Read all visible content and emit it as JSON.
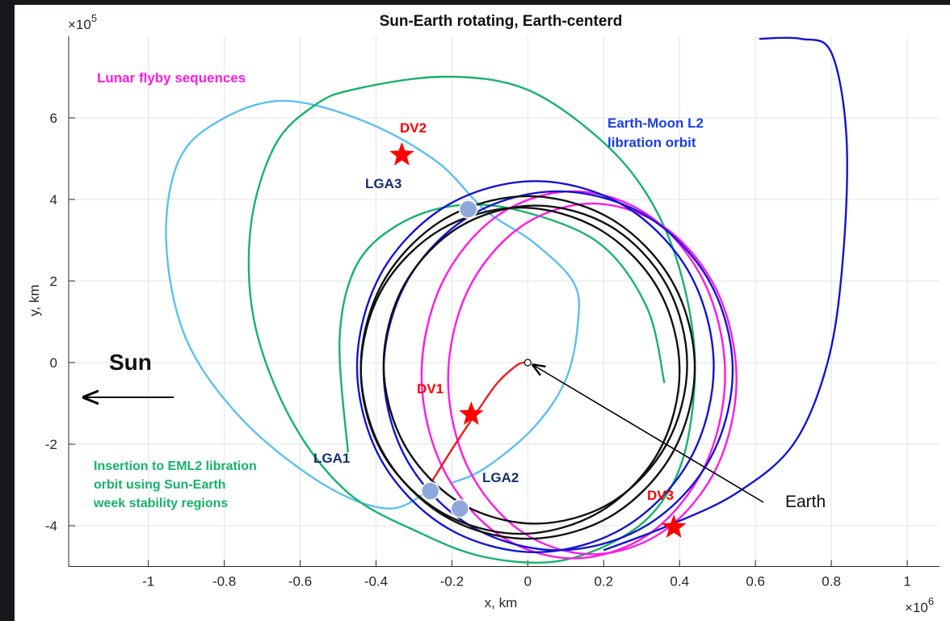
{
  "chart_data": {
    "type": "line",
    "title": "Sun-Earth rotating, Earth-centerd",
    "xlabel": "x, km",
    "ylabel": "y, km",
    "x_multiplier": {
      "base": "×10",
      "power": "6"
    },
    "y_multiplier": {
      "base": "×10",
      "power": "5"
    },
    "xlim": [
      -1.21,
      1.085
    ],
    "ylim": [
      -5,
      8
    ],
    "xticks": [
      -1,
      -0.8,
      -0.6,
      -0.4,
      -0.2,
      0,
      0.2,
      0.4,
      0.6,
      0.8,
      1
    ],
    "yticks": [
      -4,
      -2,
      0,
      2,
      4,
      6
    ],
    "grid": true,
    "series": [
      {
        "color": "#5bc0f0",
        "closed": false,
        "x": [
          -0.262,
          -0.368,
          -0.538,
          -0.751,
          -0.9,
          -0.953,
          -0.921,
          -0.815,
          -0.645,
          -0.432,
          -0.24,
          -0.113,
          0.015,
          0.121,
          0.132,
          0.1,
          0.015,
          -0.113,
          -0.2
        ],
        "y": [
          -3.15,
          -3.58,
          -2.99,
          -1.41,
          0.57,
          2.95,
          4.93,
          5.92,
          6.42,
          5.92,
          4.93,
          3.74,
          2.95,
          1.96,
          0.97,
          -0.42,
          -1.6,
          -2.59,
          -2.95
        ]
      },
      {
        "color": "#16b36a",
        "closed": true,
        "x": [
          -0.453,
          -0.219,
          -0.006,
          0.185,
          0.313,
          0.398,
          0.44,
          0.419,
          0.355,
          0.249,
          0.079,
          -0.113,
          -0.283,
          -0.474,
          -0.623,
          -0.72,
          -0.73,
          -0.666,
          -0.56
        ],
        "y": [
          6.71,
          7.01,
          6.71,
          5.52,
          4.14,
          2.36,
          0.18,
          -2.0,
          -3.39,
          -4.28,
          -4.87,
          -4.77,
          -4.18,
          -3.19,
          -1.41,
          0.97,
          3.35,
          5.33,
          6.32
        ]
      },
      {
        "color": "#16b36a",
        "closed": false,
        "x": [
          -0.474,
          -0.496,
          -0.453,
          -0.347,
          -0.198,
          -0.028,
          0.185,
          0.313,
          0.36
        ],
        "y": [
          -2.2,
          0.57,
          2.36,
          3.35,
          3.84,
          3.74,
          2.95,
          1.37,
          -0.5
        ]
      },
      {
        "color": "#ff19e6",
        "closed": true,
        "x": [
          0.52,
          0.466,
          0.32,
          0.12,
          -0.08,
          -0.226,
          -0.28,
          -0.226,
          -0.08,
          0.12,
          0.32,
          0.466
        ],
        "y": [
          -0.3,
          1.95,
          3.6,
          4.2,
          3.6,
          1.95,
          -0.3,
          -2.55,
          -4.2,
          -4.8,
          -4.2,
          -2.55
        ]
      },
      {
        "color": "#ff19e6",
        "closed": true,
        "x": [
          0.55,
          0.499,
          0.36,
          0.17,
          -0.02,
          -0.159,
          -0.21,
          -0.159,
          -0.02,
          0.17,
          0.36,
          0.499
        ],
        "y": [
          -0.4,
          1.75,
          3.32,
          3.9,
          3.32,
          1.75,
          -0.4,
          -2.55,
          -4.12,
          -4.7,
          -4.12,
          -2.55
        ]
      },
      {
        "color": "#1414d2",
        "closed": true,
        "x": [
          0.49,
          0.427,
          0.255,
          0.02,
          -0.215,
          -0.387,
          -0.45,
          -0.387,
          -0.215,
          0.02,
          0.255,
          0.427
        ],
        "y": [
          -0.1,
          2.18,
          3.84,
          4.45,
          3.84,
          2.18,
          -0.1,
          -2.38,
          -4.04,
          -4.65,
          -4.04,
          -2.38
        ]
      },
      {
        "color": "#1414d2",
        "closed": true,
        "x": [
          0.54,
          0.478,
          0.31,
          0.08,
          -0.15,
          -0.318,
          -0.38,
          -0.318,
          -0.15,
          0.08,
          0.31,
          0.478
        ],
        "y": [
          -0.2,
          2.0,
          3.61,
          4.2,
          3.61,
          2.0,
          -0.2,
          -2.4,
          -4.01,
          -4.6,
          -4.01,
          -2.4
        ]
      },
      {
        "color": "#1414d2",
        "closed": false,
        "x": [
          0.2,
          0.37,
          0.55,
          0.7,
          0.79,
          0.83,
          0.84,
          0.8,
          0.72,
          0.61
        ],
        "y": [
          -4.6,
          -4.0,
          -3.2,
          -2.0,
          0,
          2.5,
          5.5,
          7.6,
          7.94,
          7.94
        ]
      },
      {
        "color": "#111111",
        "closed": true,
        "x": [
          0.44,
          0.381,
          0.22,
          0,
          -0.22,
          -0.381,
          -0.44,
          -0.381,
          -0.22,
          0,
          0.22,
          0.381
        ],
        "y": [
          -0.12,
          1.98,
          3.52,
          4.08,
          3.52,
          1.98,
          -0.12,
          -2.22,
          -3.76,
          -4.32,
          -3.76,
          -2.22
        ]
      },
      {
        "color": "#111111",
        "closed": true,
        "x": [
          0.4,
          0.344,
          0.19,
          -0.02,
          -0.23,
          -0.384,
          -0.44,
          -0.384,
          -0.23,
          -0.02,
          0.19,
          0.344
        ],
        "y": [
          -0.2,
          1.8,
          3.26,
          3.8,
          3.26,
          1.8,
          -0.2,
          -2.2,
          -3.66,
          -4.2,
          -3.66,
          -2.2
        ]
      },
      {
        "color": "#111111",
        "closed": true,
        "x": [
          0.42,
          0.366,
          0.22,
          0.02,
          -0.18,
          -0.326,
          -0.38,
          -0.326,
          -0.18,
          0.02,
          0.22,
          0.366
        ],
        "y": [
          -0.05,
          1.9,
          3.33,
          3.85,
          3.33,
          1.9,
          -0.05,
          -2.0,
          -3.43,
          -3.95,
          -3.43,
          -2.0
        ]
      },
      {
        "color": "#ee1c1c",
        "closed": false,
        "x": [
          -0.251,
          -0.198,
          -0.134,
          -0.081,
          -0.028,
          -0.006
        ],
        "y": [
          -2.89,
          -2.1,
          -1.21,
          -0.51,
          -0.06,
          0
        ]
      }
    ],
    "markers": [
      {
        "label": "LGA3",
        "shape": "circle",
        "color": "#8fa8dc",
        "x": -0.157,
        "y": 3.76
      },
      {
        "label": "LGA1",
        "shape": "circle",
        "color": "#8fa8dc",
        "x": -0.257,
        "y": -3.15
      },
      {
        "label": "LGA2",
        "shape": "circle",
        "color": "#8fa8dc",
        "x": -0.179,
        "y": -3.58
      },
      {
        "label": "DV2",
        "shape": "star",
        "color": "#ff0000",
        "x": -0.332,
        "y": 5.09
      },
      {
        "label": "DV1",
        "shape": "star",
        "color": "#ff0000",
        "x": -0.149,
        "y": -1.27
      },
      {
        "label": "DV3",
        "shape": "star",
        "color": "#ff0000",
        "x": 0.385,
        "y": -4.04
      },
      {
        "label": "Earth",
        "shape": "dot",
        "color": "#ffffff",
        "x": 0,
        "y": 0
      }
    ],
    "annotations": {
      "sun": "Sun",
      "lunar": "Lunar flyby sequences",
      "eml2": [
        "Earth-Moon L2",
        "libration orbit"
      ],
      "insertion": [
        "Insertion to EML2 libration",
        "orbit using Sun-Earth",
        "week stability regions"
      ]
    }
  }
}
